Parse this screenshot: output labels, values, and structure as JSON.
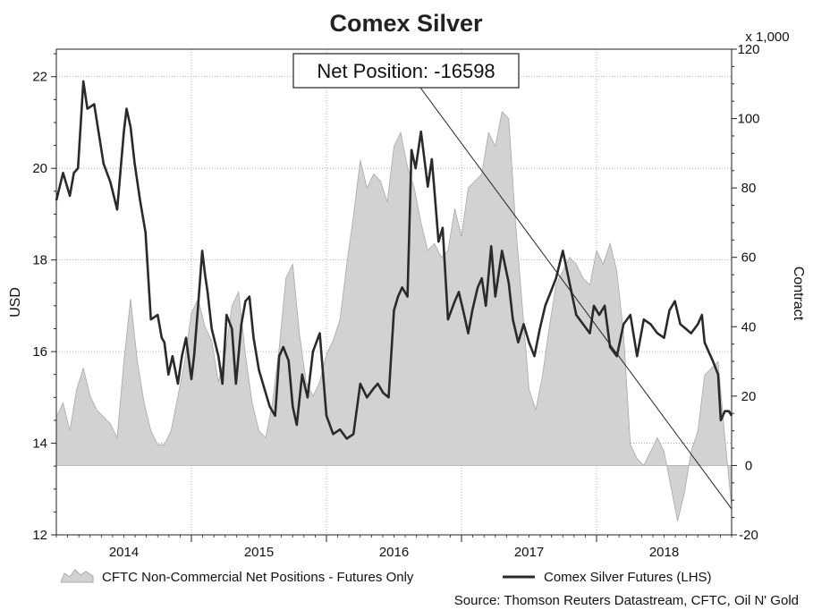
{
  "chart_data": {
    "type": "line",
    "title": "Comex Silver",
    "ylabel_left": "USD",
    "ylabel_right": "Contract",
    "right_axis_unit": "x 1,000",
    "ylim_left": [
      12,
      22.6
    ],
    "ylim_right": [
      -20,
      120
    ],
    "yticks_left": [
      "12",
      "14",
      "16",
      "18",
      "20",
      "22"
    ],
    "yticks_right": [
      "-20",
      "0",
      "20",
      "40",
      "60",
      "80",
      "100",
      "120"
    ],
    "x_range": [
      2013.5,
      2018.5
    ],
    "x_ticks": [
      {
        "label": "2014",
        "value": 2014.0
      },
      {
        "label": "2015",
        "value": 2015.0
      },
      {
        "label": "2016",
        "value": 2016.0
      },
      {
        "label": "2017",
        "value": 2017.0
      },
      {
        "label": "2018",
        "value": 2018.0
      }
    ],
    "annotation": "Net Position: -16598",
    "legend": [
      {
        "label": "CFTC Non-Commercial Net Positions - Futures Only",
        "kind": "area"
      },
      {
        "label": "Comex Silver Futures (LHS)",
        "kind": "line"
      }
    ],
    "source": "Source: Thomson Reuters Datastream, CFTC, Oil N' Gold",
    "series": [
      {
        "name": "Comex Silver Futures (LHS)",
        "axis": "left",
        "x": [
          2013.5,
          2013.55,
          2013.6,
          2013.63,
          2013.66,
          2013.7,
          2013.73,
          2013.78,
          2013.85,
          2013.9,
          2013.95,
          2014.0,
          2014.02,
          2014.05,
          2014.08,
          2014.12,
          2014.16,
          2014.2,
          2014.25,
          2014.28,
          2014.3,
          2014.33,
          2014.36,
          2014.4,
          2014.43,
          2014.46,
          2014.5,
          2014.52,
          2014.55,
          2014.58,
          2014.6,
          2014.62,
          2014.65,
          2014.7,
          2014.73,
          2014.76,
          2014.8,
          2014.83,
          2014.87,
          2014.9,
          2014.93,
          2014.96,
          2015.0,
          2015.04,
          2015.08,
          2015.12,
          2015.15,
          2015.18,
          2015.22,
          2015.25,
          2015.28,
          2015.32,
          2015.36,
          2015.4,
          2015.45,
          2015.5,
          2015.55,
          2015.6,
          2015.65,
          2015.7,
          2015.75,
          2015.8,
          2015.85,
          2015.88,
          2015.92,
          2015.96,
          2016.0,
          2016.03,
          2016.06,
          2016.1,
          2016.13,
          2016.16,
          2016.2,
          2016.25,
          2016.28,
          2016.3,
          2016.33,
          2016.36,
          2016.4,
          2016.45,
          2016.48,
          2016.52,
          2016.55,
          2016.58,
          2016.62,
          2016.65,
          2016.68,
          2016.72,
          2016.75,
          2016.8,
          2016.85,
          2016.88,
          2016.92,
          2016.96,
          2017.0,
          2017.04,
          2017.08,
          2017.12,
          2017.16,
          2017.2,
          2017.25,
          2017.3,
          2017.35,
          2017.4,
          2017.45,
          2017.48,
          2017.52,
          2017.56,
          2017.6,
          2017.65,
          2017.7,
          2017.75,
          2017.8,
          2017.85,
          2017.9,
          2017.95,
          2018.0,
          2018.04,
          2018.08,
          2018.12,
          2018.16,
          2018.2,
          2018.25,
          2018.28,
          2018.3,
          2018.33,
          2018.36,
          2018.4,
          2018.42,
          2018.45,
          2018.48,
          2018.5
        ],
        "values": [
          19.3,
          19.9,
          19.4,
          19.9,
          20.0,
          21.9,
          21.3,
          21.4,
          20.1,
          19.7,
          19.1,
          20.8,
          21.3,
          20.9,
          20.1,
          19.3,
          18.6,
          16.7,
          16.8,
          16.3,
          16.2,
          15.5,
          15.9,
          15.3,
          15.9,
          16.3,
          15.4,
          15.9,
          17.0,
          18.2,
          17.7,
          17.3,
          16.5,
          15.9,
          15.3,
          16.8,
          16.5,
          15.3,
          16.6,
          17.1,
          17.2,
          16.3,
          15.6,
          15.2,
          14.8,
          14.6,
          15.9,
          16.1,
          15.8,
          14.8,
          14.4,
          15.5,
          15.0,
          16.0,
          16.4,
          14.6,
          14.2,
          14.3,
          14.1,
          14.2,
          15.3,
          15.0,
          15.2,
          15.3,
          15.1,
          15.0,
          16.9,
          17.2,
          17.4,
          17.2,
          20.4,
          20.0,
          20.8,
          19.6,
          20.2,
          19.5,
          18.4,
          18.7,
          16.7,
          17.1,
          17.3,
          16.8,
          16.4,
          16.9,
          17.4,
          17.6,
          17.0,
          18.3,
          17.2,
          18.2,
          17.5,
          16.7,
          16.2,
          16.6,
          16.2,
          15.9,
          16.5,
          17.0,
          17.3,
          17.6,
          18.2,
          17.5,
          16.8,
          16.6,
          16.4,
          17.0,
          16.8,
          17.0,
          16.1,
          15.9,
          16.6,
          16.8,
          15.9,
          16.7,
          16.6,
          16.4,
          16.3,
          16.9,
          17.1,
          16.6,
          16.5,
          16.4,
          16.6,
          16.8,
          16.2,
          16.0,
          15.8,
          15.5,
          14.5,
          14.7,
          14.7,
          14.6
        ]
      },
      {
        "name": "CFTC Non-Commercial Net Positions - Futures Only",
        "axis": "right",
        "x": [
          2013.5,
          2013.55,
          2013.6,
          2013.65,
          2013.7,
          2013.75,
          2013.8,
          2013.85,
          2013.9,
          2013.95,
          2014.0,
          2014.05,
          2014.1,
          2014.15,
          2014.2,
          2014.25,
          2014.3,
          2014.35,
          2014.4,
          2014.45,
          2014.5,
          2014.55,
          2014.6,
          2014.65,
          2014.7,
          2014.75,
          2014.8,
          2014.85,
          2014.9,
          2014.95,
          2015.0,
          2015.05,
          2015.1,
          2015.15,
          2015.2,
          2015.25,
          2015.3,
          2015.35,
          2015.4,
          2015.45,
          2015.5,
          2015.55,
          2015.6,
          2015.65,
          2015.7,
          2015.75,
          2015.8,
          2015.85,
          2015.9,
          2015.95,
          2016.0,
          2016.05,
          2016.1,
          2016.15,
          2016.2,
          2016.25,
          2016.3,
          2016.35,
          2016.4,
          2016.45,
          2016.5,
          2016.55,
          2016.6,
          2016.65,
          2016.7,
          2016.75,
          2016.8,
          2016.85,
          2016.9,
          2016.95,
          2017.0,
          2017.05,
          2017.1,
          2017.15,
          2017.2,
          2017.25,
          2017.3,
          2017.35,
          2017.4,
          2017.45,
          2017.5,
          2017.55,
          2017.6,
          2017.65,
          2017.7,
          2017.75,
          2017.8,
          2017.85,
          2017.9,
          2017.95,
          2018.0,
          2018.05,
          2018.1,
          2018.15,
          2018.2,
          2018.25,
          2018.3,
          2018.35,
          2018.4,
          2018.45,
          2018.5
        ],
        "values": [
          14,
          18,
          10,
          22,
          28,
          20,
          16,
          14,
          12,
          8,
          30,
          48,
          30,
          18,
          10,
          6,
          6,
          10,
          20,
          30,
          44,
          48,
          40,
          36,
          24,
          32,
          46,
          50,
          32,
          18,
          10,
          8,
          18,
          34,
          54,
          58,
          38,
          24,
          20,
          24,
          32,
          36,
          42,
          58,
          72,
          88,
          80,
          84,
          82,
          76,
          92,
          96,
          86,
          80,
          70,
          62,
          64,
          60,
          62,
          74,
          66,
          80,
          82,
          84,
          96,
          92,
          102,
          100,
          70,
          46,
          22,
          16,
          26,
          40,
          52,
          56,
          60,
          58,
          54,
          52,
          62,
          58,
          64,
          56,
          38,
          6,
          2,
          0,
          4,
          8,
          4,
          -6,
          -16,
          -8,
          4,
          10,
          26,
          28,
          30,
          8,
          -12
        ]
      }
    ]
  }
}
